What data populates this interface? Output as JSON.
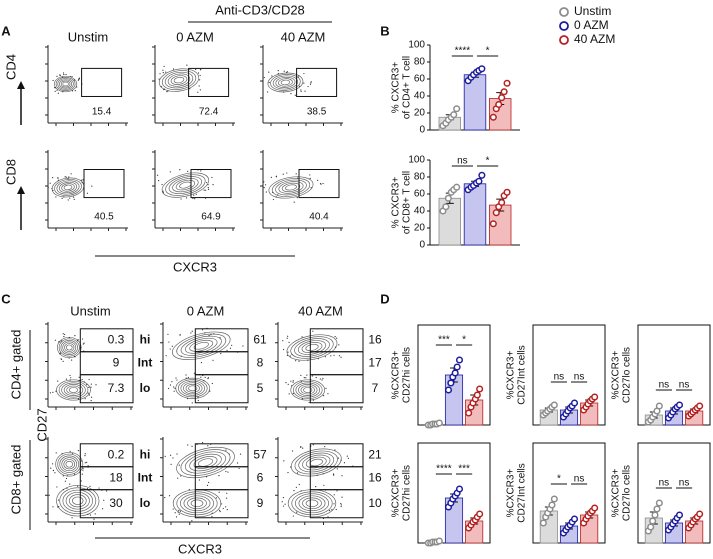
{
  "panels": {
    "A": {
      "letter": "A",
      "group_header": "Anti-CD3/CD28",
      "columns": [
        "Unstim",
        "0 AZM",
        "40 AZM"
      ],
      "row_labels": [
        "CD4",
        "CD8"
      ],
      "x_label": "CXCR3",
      "gates": [
        [
          15.4,
          72.4,
          38.5
        ],
        [
          40.5,
          64.9,
          40.4
        ]
      ]
    },
    "B": {
      "letter": "B"
    },
    "C": {
      "letter": "C",
      "columns": [
        "Unstim",
        "0 AZM",
        "40 AZM"
      ],
      "row_labels": [
        "CD4+ gated",
        "CD8+ gated"
      ],
      "y_label": "CD27",
      "x_label": "CXCR3",
      "gate_names": [
        "hi",
        "Int",
        "lo"
      ],
      "gates": [
        [
          [
            0.3,
            9,
            7.3
          ],
          [
            61,
            8,
            5
          ],
          [
            16,
            17,
            7
          ]
        ],
        [
          [
            0.2,
            18,
            30
          ],
          [
            57,
            6,
            9
          ],
          [
            21,
            16,
            10
          ]
        ]
      ]
    },
    "D": {
      "letter": "D"
    }
  },
  "legend": [
    {
      "name": "Unstim",
      "color": "#8c8c8c",
      "fill": "#dcdcdc"
    },
    {
      "name": "0 AZM",
      "color": "#1c1c9c",
      "fill": "#c5c5f0"
    },
    {
      "name": "40 AZM",
      "color": "#b52020",
      "fill": "#f2bcbc"
    }
  ],
  "chart_data": [
    {
      "type": "bar",
      "ylabel": [
        "% CXCR3+",
        "of CD4+ T cell"
      ],
      "ylim": [
        0,
        100
      ],
      "yticks": [
        0,
        20,
        40,
        60,
        80,
        100
      ],
      "values": [
        15,
        65,
        37
      ],
      "errors": [
        3,
        3,
        7
      ],
      "points": [
        [
          5,
          8,
          12,
          15,
          18,
          25
        ],
        [
          58,
          62,
          65,
          68,
          70,
          72
        ],
        [
          15,
          25,
          30,
          38,
          45,
          55
        ]
      ],
      "significance": [
        "****",
        "*"
      ]
    },
    {
      "type": "bar",
      "ylabel": [
        "% CXCR3+",
        "of CD8+ T cell"
      ],
      "ylim": [
        0,
        100
      ],
      "yticks": [
        0,
        20,
        40,
        60,
        80,
        100
      ],
      "values": [
        55,
        72,
        47
      ],
      "errors": [
        6,
        3,
        7
      ],
      "points": [
        [
          40,
          45,
          55,
          62,
          65,
          68
        ],
        [
          65,
          68,
          70,
          73,
          75,
          82
        ],
        [
          25,
          38,
          45,
          50,
          58,
          62
        ]
      ],
      "significance": [
        "ns",
        "*"
      ]
    },
    {
      "type": "bar",
      "ylabel": [
        "%CXCR3+",
        "CD27hi cells"
      ],
      "ylim": [
        0,
        100
      ],
      "values": [
        1,
        50,
        25
      ],
      "errors": [
        0.5,
        7,
        5
      ],
      "points": [
        [
          0,
          0,
          1,
          1,
          1,
          2
        ],
        [
          35,
          42,
          48,
          52,
          58,
          65
        ],
        [
          12,
          18,
          22,
          26,
          30,
          36
        ]
      ],
      "significance": [
        "***",
        "*"
      ]
    },
    {
      "type": "bar",
      "ylabel": [
        "%CXCR3+",
        "CD27Int cells"
      ],
      "ylim": [
        0,
        100
      ],
      "values": [
        15,
        15,
        22
      ],
      "errors": [
        2,
        3,
        3
      ],
      "points": [
        [
          10,
          12,
          14,
          16,
          18,
          20
        ],
        [
          8,
          11,
          14,
          17,
          19,
          22
        ],
        [
          15,
          18,
          21,
          24,
          26,
          28
        ]
      ],
      "significance": [
        "ns",
        "ns"
      ]
    },
    {
      "type": "bar",
      "ylabel": [
        "%CXCR3+",
        "CD27lo cells"
      ],
      "ylim": [
        0,
        100
      ],
      "values": [
        10,
        14,
        14
      ],
      "errors": [
        3,
        3,
        2
      ],
      "points": [
        [
          3,
          5,
          8,
          11,
          14,
          19
        ],
        [
          7,
          10,
          13,
          16,
          18,
          20
        ],
        [
          9,
          11,
          13,
          15,
          17,
          19
        ]
      ],
      "significance": [
        "ns",
        "ns"
      ]
    },
    {
      "type": "bar",
      "ylabel": [
        "%CXCR3+",
        "CD27hi cells"
      ],
      "ylim": [
        0,
        100
      ],
      "values": [
        1,
        45,
        22
      ],
      "errors": [
        0.5,
        4,
        3
      ],
      "points": [
        [
          0,
          0,
          1,
          1,
          1,
          2
        ],
        [
          36,
          40,
          44,
          47,
          50,
          54
        ],
        [
          15,
          18,
          21,
          23,
          26,
          29
        ]
      ],
      "significance": [
        "****",
        "***"
      ]
    },
    {
      "type": "bar",
      "ylabel": [
        "%CXCR3+",
        "CD27Int cells"
      ],
      "ylim": [
        0,
        100
      ],
      "values": [
        32,
        17,
        28
      ],
      "errors": [
        4,
        3,
        3
      ],
      "points": [
        [
          20,
          26,
          30,
          34,
          38,
          44
        ],
        [
          10,
          13,
          16,
          18,
          21,
          24
        ],
        [
          20,
          24,
          27,
          30,
          32,
          35
        ]
      ],
      "significance": [
        "*",
        "ns"
      ]
    },
    {
      "type": "bar",
      "ylabel": [
        "%CXCR3+",
        "CD27lo cells"
      ],
      "ylim": [
        0,
        100
      ],
      "values": [
        25,
        20,
        22
      ],
      "errors": [
        6,
        3,
        3
      ],
      "points": [
        [
          12,
          16,
          22,
          28,
          34,
          40
        ],
        [
          13,
          16,
          19,
          22,
          25,
          28
        ],
        [
          15,
          18,
          21,
          24,
          26,
          29
        ]
      ],
      "significance": [
        "ns",
        "ns"
      ]
    }
  ]
}
